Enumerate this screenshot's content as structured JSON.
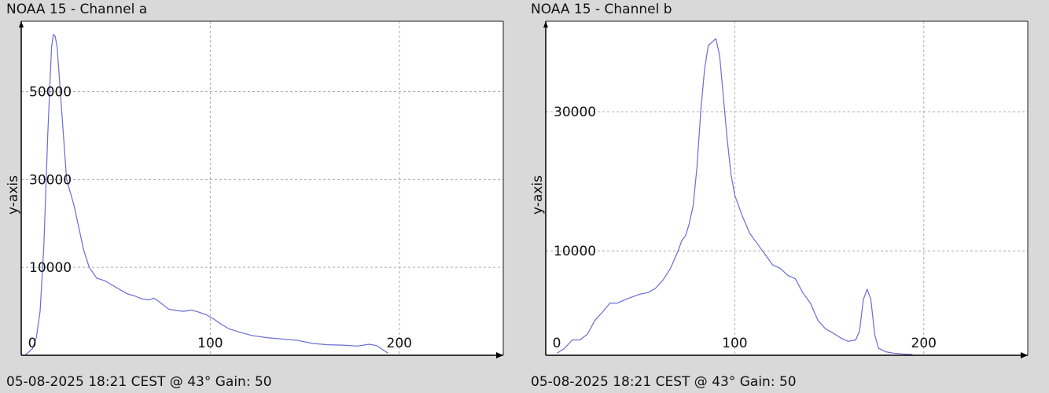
{
  "panels": [
    {
      "title": "NOAA 15 - Channel a",
      "footer": "05-08-2025 18:21 CEST @ 43° Gain: 50"
    },
    {
      "title": "NOAA 15 - Channel b",
      "footer": "05-08-2025 18:21 CEST @ 43° Gain: 50"
    }
  ],
  "colors": {
    "line": "#6b6bd6",
    "grid": "#aaaaaa",
    "plot_bg": "#ffffff",
    "page_bg": "#d9d9d9"
  },
  "chart_data": [
    {
      "type": "line",
      "title": "NOAA 15 - Channel a",
      "xlabel": "",
      "ylabel": "y-axis",
      "xlim": [
        0,
        255
      ],
      "ylim": [
        -10000,
        66000
      ],
      "x_ticks": [
        0,
        100,
        200
      ],
      "y_ticks": [
        10000,
        30000,
        50000
      ],
      "grid": true,
      "series": [
        {
          "x": [
            2,
            6,
            8,
            10,
            12,
            14,
            16,
            17,
            18,
            19,
            20,
            22,
            24,
            26,
            28,
            30,
            33,
            36,
            40,
            44,
            48,
            52,
            56,
            60,
            64,
            68,
            70,
            72,
            75,
            78,
            82,
            86,
            90,
            94,
            98,
            102,
            106,
            110,
            116,
            122,
            130,
            138,
            146,
            154,
            162,
            170,
            178,
            184,
            188,
            194
          ],
          "values": [
            -10000,
            -8500,
            -6000,
            0,
            15000,
            40000,
            60000,
            63000,
            62500,
            60000,
            54000,
            42000,
            30000,
            27000,
            24000,
            20000,
            14000,
            10000,
            7500,
            7000,
            6000,
            5000,
            4000,
            3500,
            2800,
            2600,
            3000,
            2500,
            1500,
            500,
            200,
            0,
            300,
            -200,
            -800,
            -1800,
            -3000,
            -4000,
            -4800,
            -5500,
            -6000,
            -6300,
            -6600,
            -7300,
            -7600,
            -7700,
            -7900,
            -7500,
            -7800,
            -9500
          ]
        }
      ]
    },
    {
      "type": "line",
      "title": "NOAA 15 - Channel b",
      "xlabel": "",
      "ylabel": "y-axis",
      "xlim": [
        0,
        255
      ],
      "ylim": [
        -5000,
        43000
      ],
      "x_ticks": [
        0,
        100,
        200
      ],
      "y_ticks": [
        10000,
        30000
      ],
      "grid": true,
      "series": [
        {
          "x": [
            6,
            10,
            14,
            18,
            22,
            26,
            30,
            34,
            38,
            42,
            46,
            50,
            54,
            58,
            62,
            66,
            70,
            72,
            74,
            76,
            78,
            80,
            82,
            84,
            86,
            88,
            90,
            92,
            94,
            96,
            98,
            100,
            104,
            108,
            112,
            116,
            120,
            124,
            128,
            132,
            136,
            140,
            144,
            148,
            152,
            156,
            160,
            164,
            166,
            168,
            170,
            172,
            174,
            176,
            180,
            184,
            188,
            194
          ],
          "values": [
            -4700,
            -4000,
            -2800,
            -2800,
            -2000,
            0,
            1200,
            2500,
            2500,
            3000,
            3400,
            3800,
            4000,
            4600,
            5800,
            7500,
            10000,
            11500,
            12200,
            14000,
            16500,
            22000,
            30000,
            36000,
            39500,
            40000,
            40500,
            38000,
            32000,
            26000,
            21000,
            18000,
            15000,
            12500,
            11000,
            9500,
            8000,
            7500,
            6500,
            6000,
            4000,
            2500,
            0,
            -1200,
            -1800,
            -2500,
            -3000,
            -2800,
            -1500,
            3000,
            4500,
            3000,
            -2000,
            -4000,
            -4500,
            -4700,
            -4800,
            -4900
          ]
        }
      ]
    }
  ]
}
